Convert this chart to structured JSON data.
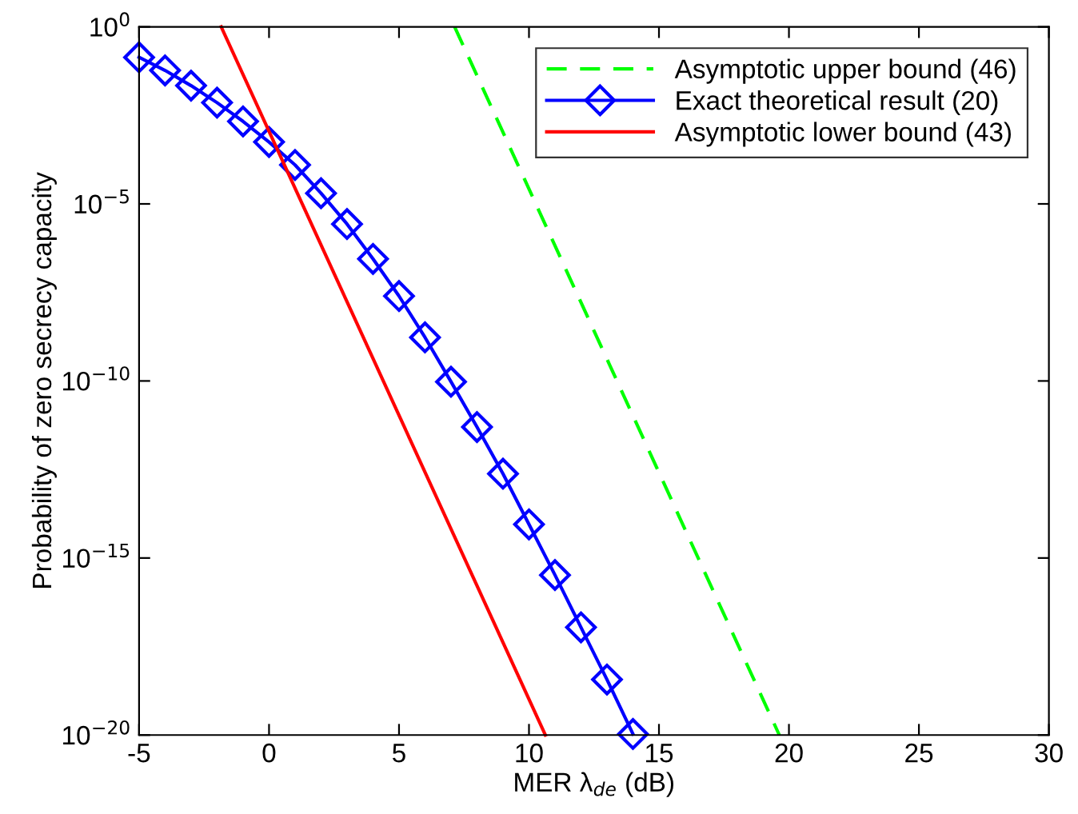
{
  "chart_data": {
    "type": "line",
    "xlabel": "MER λ$_{de}$ (dB)",
    "ylabel": "Probability of zero secrecy capacity",
    "log": "y",
    "xlim": [
      -5,
      30
    ],
    "xticks": [
      -5,
      0,
      5,
      10,
      15,
      20,
      25,
      30
    ],
    "ylim": [
      1e-20,
      1
    ],
    "yticks": [
      {
        "value": 1e-20,
        "label": "10$^{−20}$"
      },
      {
        "value": 1e-15,
        "label": "10$^{−15}$"
      },
      {
        "value": 1e-10,
        "label": "10$^{−10}$"
      },
      {
        "value": 1e-05,
        "label": "10$^{−5}$"
      },
      {
        "value": 1,
        "label": "10$^{0}$"
      }
    ],
    "grid": false,
    "legend": "top right",
    "series": [
      {
        "name": "Asymptotic upper bound (46)",
        "color": "#00ff00",
        "line_style": "dashed",
        "marker": "none",
        "x": [
          7.14,
          19.63
        ],
        "values": [
          1,
          1e-20
        ]
      },
      {
        "name": "Exact theoretical result (20)",
        "color": "#0000ff",
        "line_style": "solid",
        "marker": "diamond",
        "x": [
          -5,
          -4,
          -3,
          -2,
          -1,
          0,
          1,
          2,
          3,
          4,
          5,
          6,
          7,
          8,
          9,
          10,
          11,
          12,
          13,
          14
        ],
        "values": [
          0.138,
          0.0589,
          0.0219,
          0.00724,
          0.00214,
          0.00056,
          0.000126,
          2e-05,
          2.7e-06,
          2.8e-07,
          2.5e-08,
          1.7e-09,
          9.5e-11,
          5e-12,
          2.4e-13,
          8.9e-15,
          3.3e-16,
          1.1e-17,
          3.7e-19,
          1.07e-20
        ]
      },
      {
        "name": "Asymptotic lower bound (43)",
        "color": "#ff0000",
        "line_style": "solid",
        "marker": "none",
        "x": [
          -1.84,
          10.63
        ],
        "values": [
          1,
          1e-20
        ]
      }
    ]
  }
}
